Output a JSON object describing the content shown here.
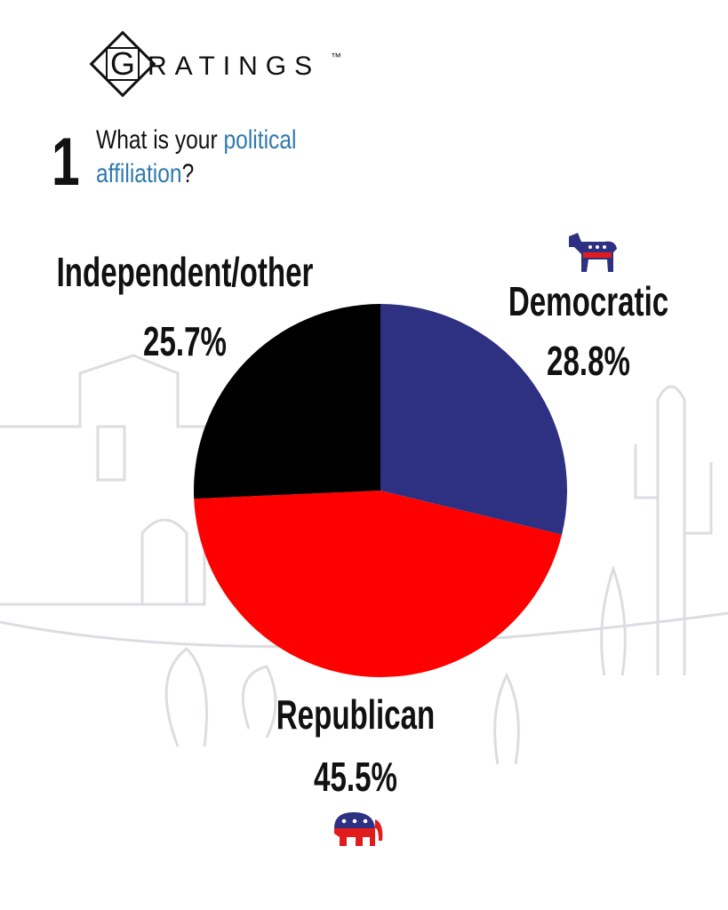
{
  "logo": {
    "initial": "G",
    "rest": "RATINGS",
    "mark": "™"
  },
  "question": {
    "number": "1",
    "parts": [
      "What is your ",
      "political",
      "affiliation",
      "?"
    ]
  },
  "chart_data": {
    "type": "pie",
    "categories": [
      "Democratic",
      "Republican",
      "Independent/other"
    ],
    "values": [
      28.8,
      45.5,
      25.7
    ],
    "value_labels": [
      "28.8%",
      "45.5%",
      "25.7%"
    ],
    "colors": [
      "#2e3081",
      "#ff0000",
      "#000000"
    ]
  }
}
